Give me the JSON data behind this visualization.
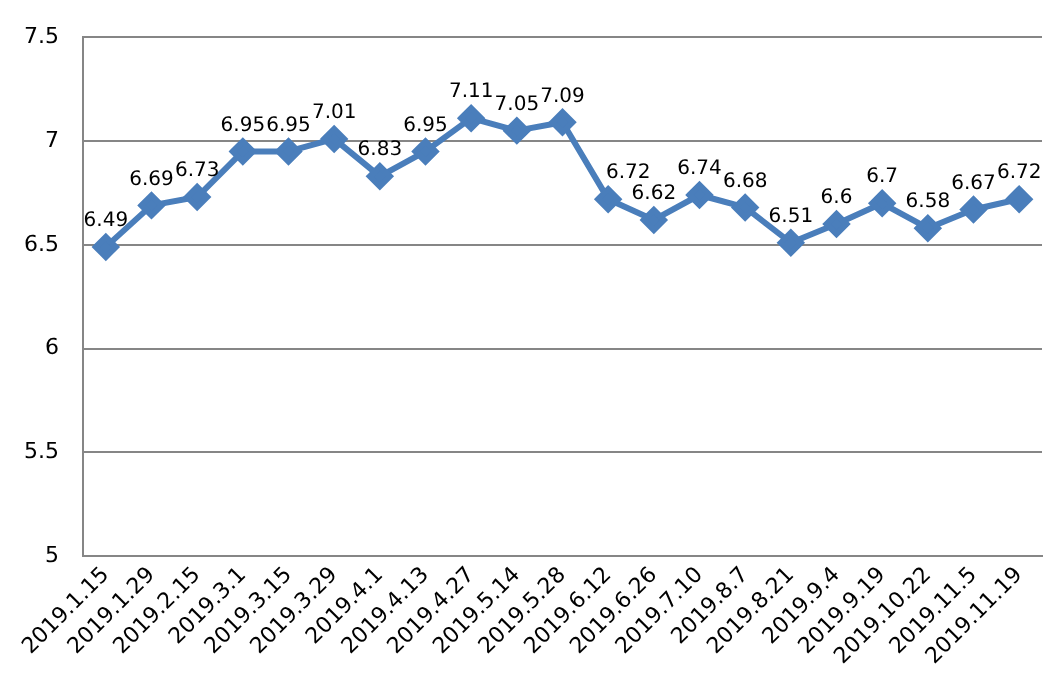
{
  "chart_data": {
    "type": "line",
    "categories": [
      "2019.1.15",
      "2019.1.29",
      "2019.2.15",
      "2019.3.1",
      "2019.3.15",
      "2019.3.29",
      "2019.4.1",
      "2019.4.13",
      "2019.4.27",
      "2019.5.14",
      "2019.5.28",
      "2019.6.12",
      "2019.6.26",
      "2019.7.10",
      "2019.8.7",
      "2019.8.21",
      "2019.9.4",
      "2019.9.19",
      "2019.10.22",
      "2019.11.5",
      "2019.11.19"
    ],
    "series": [
      {
        "color": "#4a7ebb",
        "values": [
          6.49,
          6.69,
          6.73,
          6.95,
          6.95,
          7.01,
          6.83,
          6.95,
          7.11,
          7.05,
          7.09,
          6.72,
          6.62,
          6.74,
          6.68,
          6.51,
          6.6,
          6.7,
          6.58,
          6.67,
          6.72
        ]
      }
    ],
    "ylim": [
      5,
      7.5
    ],
    "yticks": [
      5,
      5.5,
      6,
      6.5,
      7,
      7.5
    ],
    "grid": "y",
    "data_labels": true,
    "marker": "diamond",
    "line_style": "solid",
    "legend": false
  }
}
